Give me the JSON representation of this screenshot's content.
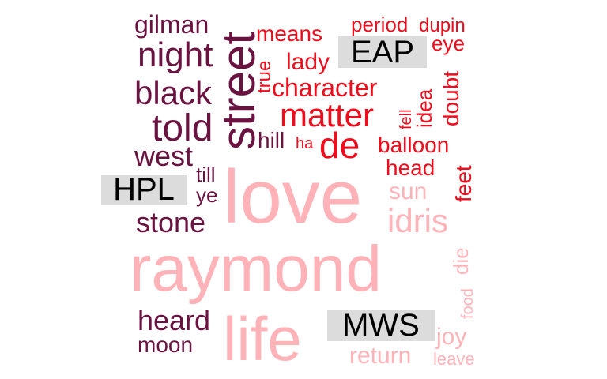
{
  "colors": {
    "HPL": "#6b1340",
    "EAP": "#ee0d1c",
    "MWS": "#ffb3b8",
    "label_bg": "#dcdcdc",
    "label_text": "#000000"
  },
  "chart_data": {
    "type": "comparison-wordcloud",
    "title": "",
    "groups": [
      {
        "name": "HPL",
        "label": "HPL",
        "words": [
          "gilman",
          "night",
          "black",
          "told",
          "west",
          "street",
          "hill",
          "till",
          "ye",
          "stone",
          "heard",
          "moon"
        ]
      },
      {
        "name": "EAP",
        "label": "EAP",
        "words": [
          "means",
          "period",
          "dupin",
          "eye",
          "lady",
          "true",
          "character",
          "matter",
          "fell",
          "idea",
          "doubt",
          "ha",
          "de",
          "balloon",
          "head",
          "feet"
        ]
      },
      {
        "name": "MWS",
        "label": "MWS",
        "words": [
          "love",
          "sun",
          "idris",
          "raymond",
          "die",
          "food",
          "life",
          "joy",
          "return",
          "leave"
        ]
      }
    ]
  }
}
